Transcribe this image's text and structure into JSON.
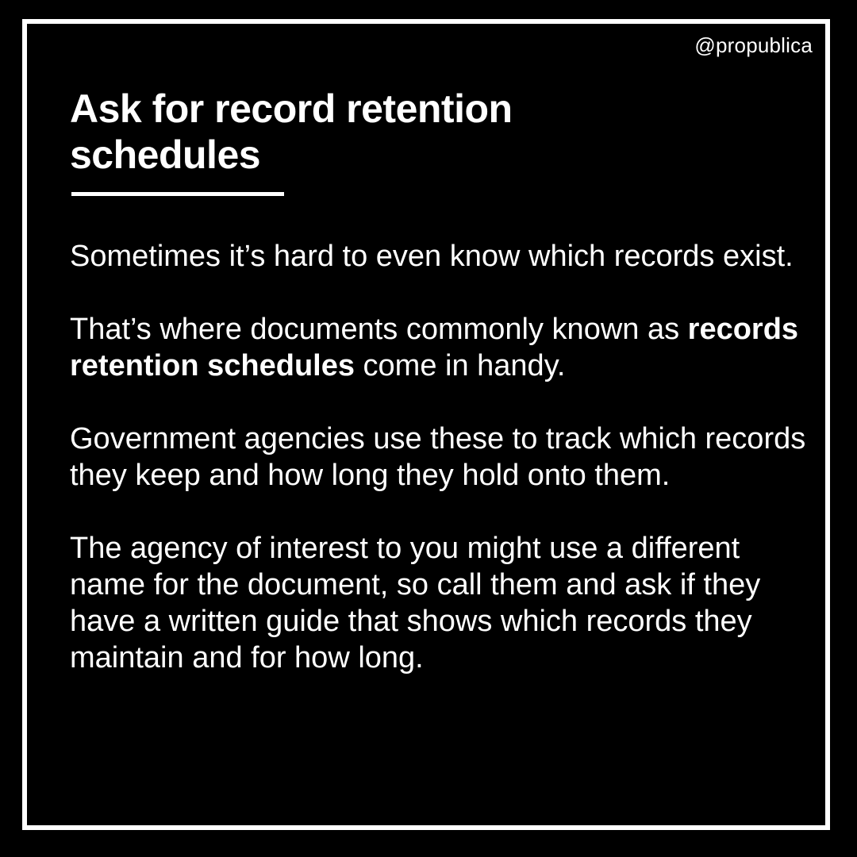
{
  "handle": "@propublica",
  "title_line1": "Ask for record retention",
  "title_line2": "schedules",
  "paragraph1": "Sometimes it’s hard to even know which records exist.",
  "paragraph2_prefix": "That’s where documents commonly known as ",
  "paragraph2_bold": "records retention schedules",
  "paragraph2_suffix": " come in handy.",
  "paragraph3": "Government agencies use these to track which records they keep and how long they hold onto them.",
  "paragraph4": "The agency of interest to you might use a different name for the document, so call them and ask if they have a written guide that shows which records they maintain and for how long.",
  "colors": {
    "background": "#000000",
    "text": "#ffffff",
    "border": "#ffffff"
  }
}
